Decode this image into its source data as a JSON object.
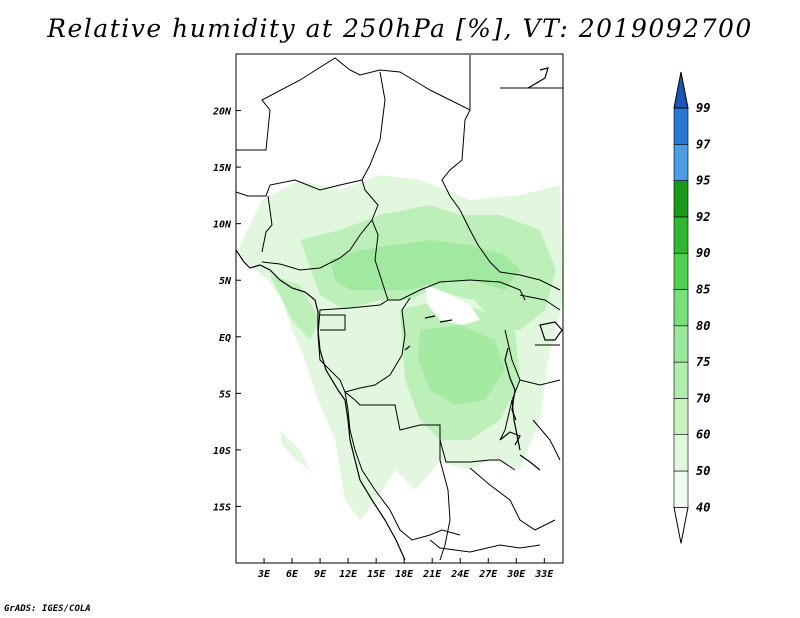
{
  "title": "Relative humidity at 250hPa [%], VT: 2019092700",
  "credit": "GrADS: IGES/COLA",
  "map": {
    "region": "Central Africa",
    "lon_range": [
      0,
      35
    ],
    "lat_range": [
      -20,
      25
    ],
    "lon_ticks": [
      "3E",
      "6E",
      "9E",
      "12E",
      "15E",
      "18E",
      "21E",
      "24E",
      "27E",
      "30E",
      "33E"
    ],
    "lat_ticks": [
      "20N",
      "15N",
      "10N",
      "5N",
      "EQ",
      "5S",
      "10S",
      "15S"
    ]
  },
  "colorbar": {
    "levels": [
      "40",
      "50",
      "60",
      "70",
      "75",
      "80",
      "85",
      "90",
      "92",
      "95",
      "97",
      "99"
    ],
    "colors": [
      "#f0fcf0",
      "#e0f8dc",
      "#c8f2c0",
      "#b0ecac",
      "#9ce89c",
      "#78e078",
      "#50d050",
      "#30b830",
      "#1a9a1a",
      "#4c9ce6",
      "#2a78d6",
      "#1a55b8"
    ]
  }
}
